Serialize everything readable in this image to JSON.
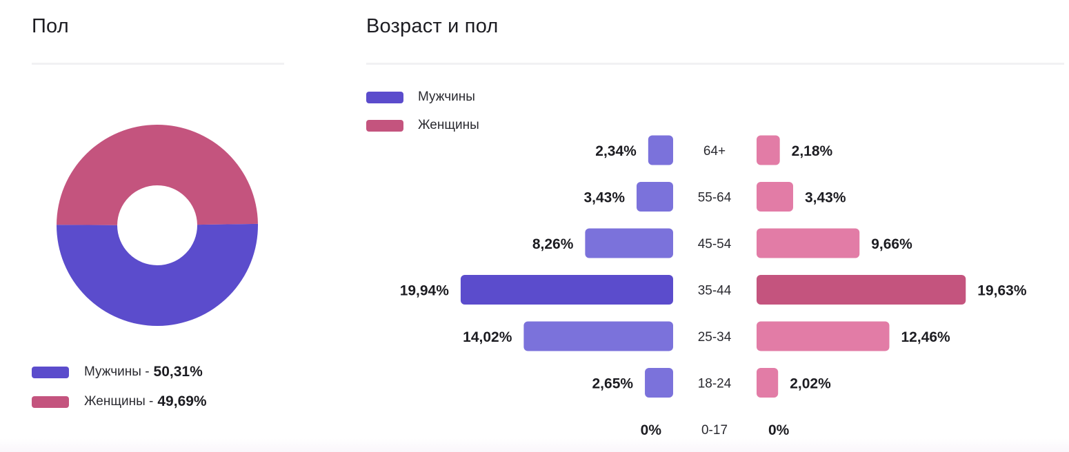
{
  "gender_panel": {
    "title": "Пол",
    "legend": [
      {
        "label": "Мужчины - ",
        "value": "50,31%",
        "color": "#5b4ccc"
      },
      {
        "label": "Женщины - ",
        "value": "49,69%",
        "color": "#c4547e"
      }
    ]
  },
  "age_panel": {
    "title": "Возраст и пол",
    "legend": [
      {
        "label": "Мужчины",
        "color": "#5b4ccc"
      },
      {
        "label": "Женщины",
        "color": "#c4547e"
      }
    ]
  },
  "chart_data": [
    {
      "type": "pie",
      "variant": "donut",
      "title": "Пол",
      "categories": [
        "Мужчины",
        "Женщины"
      ],
      "values": [
        50.31,
        49.69
      ],
      "colors": [
        "#5b4ccc",
        "#c4547e"
      ],
      "legend": "bottom-left"
    },
    {
      "type": "bar",
      "variant": "population-pyramid",
      "title": "Возраст и пол",
      "categories": [
        "64+",
        "55-64",
        "45-54",
        "35-44",
        "25-34",
        "18-24",
        "0-17"
      ],
      "series": [
        {
          "name": "Мужчины",
          "values": [
            2.34,
            3.43,
            8.26,
            19.94,
            14.02,
            2.65,
            0
          ],
          "labels": [
            "2,34%",
            "3,43%",
            "8,26%",
            "19,94%",
            "14,02%",
            "2,65%",
            "0%"
          ],
          "color": "#5b4ccc",
          "light_color": "#7b72db"
        },
        {
          "name": "Женщины",
          "values": [
            2.18,
            3.43,
            9.66,
            19.63,
            12.46,
            2.02,
            0
          ],
          "labels": [
            "2,18%",
            "3,43%",
            "9,66%",
            "19,63%",
            "12,46%",
            "2,02%",
            "0%"
          ],
          "color": "#c4547e",
          "light_color": "#e27ca6"
        }
      ],
      "legend": "top-left",
      "grid": false
    }
  ]
}
